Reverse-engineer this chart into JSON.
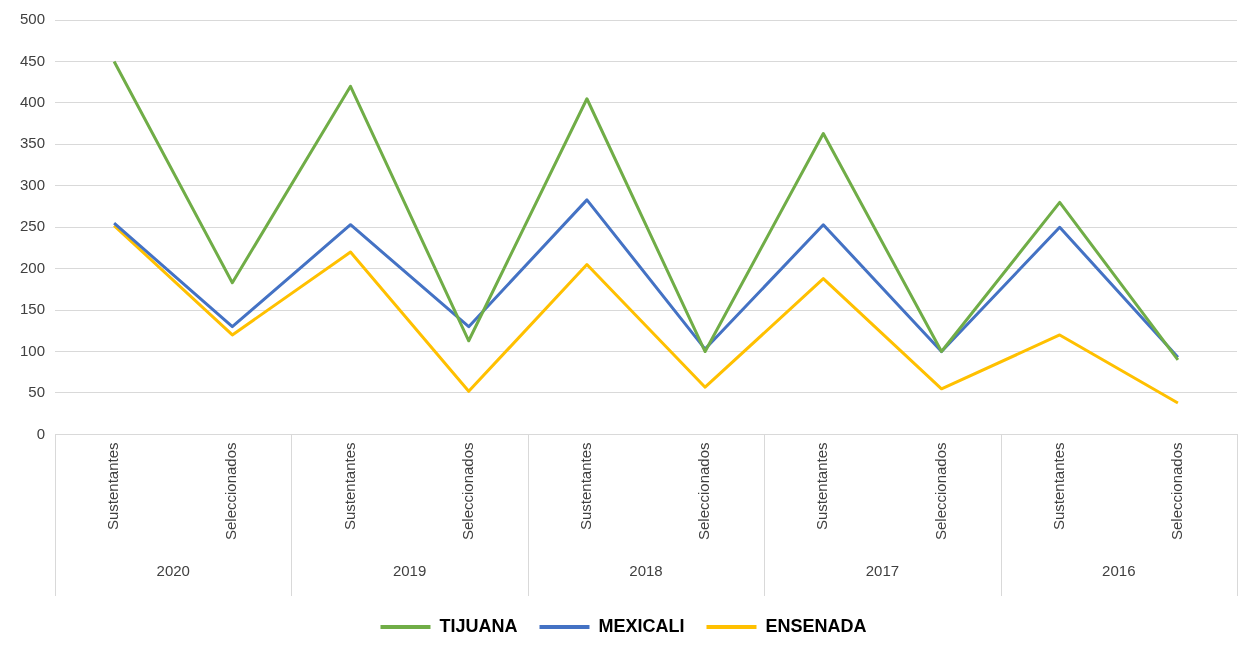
{
  "chart_data": {
    "type": "line",
    "categories": [
      "Sustentantes",
      "Seleccionados",
      "Sustentantes",
      "Seleccionados",
      "Sustentantes",
      "Seleccionados",
      "Sustentantes",
      "Seleccionados",
      "Sustentantes",
      "Seleccionados"
    ],
    "series": [
      {
        "name": "TIJUANA",
        "color": "#70ad47",
        "values": [
          450,
          183,
          420,
          113,
          405,
          100,
          363,
          100,
          280,
          90
        ]
      },
      {
        "name": "MEXICALI",
        "color": "#4472c4",
        "values": [
          255,
          130,
          253,
          130,
          283,
          103,
          253,
          100,
          250,
          93
        ]
      },
      {
        "name": "ENSENADA",
        "color": "#ffc000",
        "values": [
          252,
          120,
          220,
          52,
          205,
          57,
          188,
          55,
          120,
          38
        ]
      }
    ],
    "ylim": [
      0,
      500
    ],
    "yticks": [
      0,
      50,
      100,
      150,
      200,
      250,
      300,
      350,
      400,
      450,
      500
    ],
    "grid": "y",
    "legend": "bottom",
    "marker": "none",
    "line_style": "solid",
    "annotations": [
      "2020",
      "2019",
      "2018",
      "2017",
      "2016"
    ]
  }
}
